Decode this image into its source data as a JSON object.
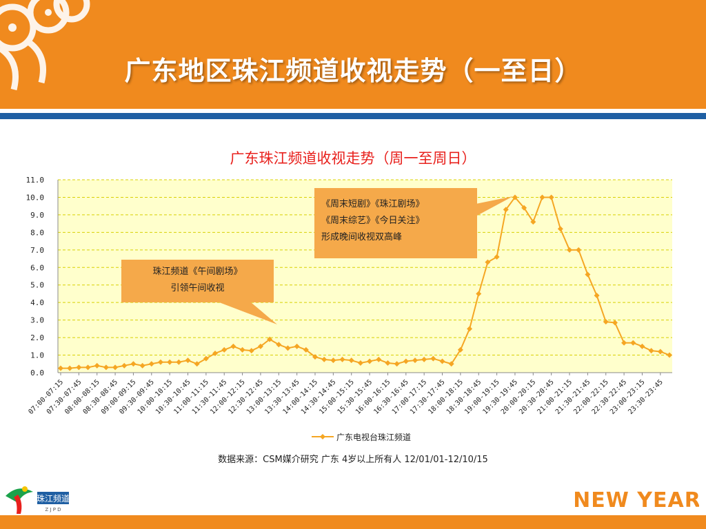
{
  "page_title": "广东地区珠江频道收视走势（一至日）",
  "colors": {
    "header": "#F08A1E",
    "stripe": "#1F5FA3",
    "plot_bg": "#FFFFCC",
    "grid": "#D8D000",
    "series": "#F5A623",
    "callout": "#F5A94A",
    "chart_title": "#E8201C"
  },
  "callouts": {
    "noon": {
      "line1": "珠江频道《午间剧场》",
      "line2": "引领午间收视"
    },
    "evening": {
      "line1": "《周末短剧》《珠江剧场》",
      "line2": "《周末综艺》《今日关注》",
      "line3": "形成晚间收视双高峰"
    }
  },
  "source": "数据来源：CSM媒介研究 广东 4岁以上所有人 12/01/01-12/10/15",
  "logo_left": {
    "text": "珠江频道",
    "subtext": "Z J P D"
  },
  "logo_right": {
    "text": "NEW YEAR"
  },
  "chart_data": {
    "type": "line",
    "title": "广东珠江频道收视走势（周一至周日）",
    "xlabel": "",
    "ylabel": "",
    "ylim": [
      0,
      11
    ],
    "yticks": [
      "0.0",
      "1.0",
      "2.0",
      "3.0",
      "4.0",
      "5.0",
      "6.0",
      "7.0",
      "8.0",
      "9.0",
      "10.0",
      "11.0"
    ],
    "grid": true,
    "legend_position": "bottom",
    "x_tick_labels": [
      "07:00-07:15",
      "07:30-07:45",
      "08:00-08:15",
      "08:30-08:45",
      "09:00-09:15",
      "09:30-09:45",
      "10:00-10:15",
      "10:30-10:45",
      "11:00-11:15",
      "11:30-11:45",
      "12:00-12:15",
      "12:30-12:45",
      "13:00-13:15",
      "13:30-13:45",
      "14:00-14:15",
      "14:30-14:45",
      "15:00-15:15",
      "15:30-15:45",
      "16:00-16:15",
      "16:30-16:45",
      "17:00-17:15",
      "17:30-17:45",
      "18:00-18:15",
      "18:30-18:45",
      "19:00-19:15",
      "19:30-19:45",
      "20:00-20:15",
      "20:30-20:45",
      "21:00-21:15",
      "21:30-21:45",
      "22:00-22:15",
      "22:30-22:45",
      "23:00-23:15",
      "23:30-23:45"
    ],
    "series": [
      {
        "name": "广东电视台珠江频道",
        "values": [
          0.25,
          0.25,
          0.3,
          0.3,
          0.4,
          0.3,
          0.3,
          0.4,
          0.5,
          0.4,
          0.5,
          0.6,
          0.6,
          0.6,
          0.7,
          0.5,
          0.8,
          1.1,
          1.3,
          1.5,
          1.3,
          1.25,
          1.5,
          1.9,
          1.6,
          1.4,
          1.5,
          1.3,
          0.9,
          0.75,
          0.7,
          0.75,
          0.7,
          0.55,
          0.65,
          0.75,
          0.55,
          0.5,
          0.65,
          0.7,
          0.75,
          0.8,
          0.65,
          0.5,
          1.3,
          2.5,
          4.5,
          6.3,
          6.6,
          9.3,
          10.0,
          9.4,
          8.6,
          10.0,
          10.0,
          8.2,
          7.0,
          7.0,
          5.6,
          4.4,
          2.9,
          2.85,
          1.7,
          1.7,
          1.5,
          1.25,
          1.2,
          1.0
        ]
      }
    ]
  }
}
